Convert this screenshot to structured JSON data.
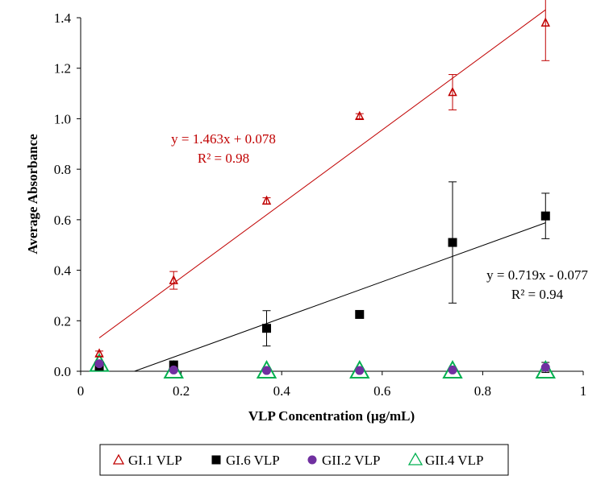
{
  "chart_data": {
    "type": "scatter",
    "xlabel": "VLP Concentration (µg/mL)",
    "ylabel": "Average Absorbance",
    "xlim": [
      0,
      1
    ],
    "ylim": [
      0,
      1.4
    ],
    "xticks": [
      0,
      0.2,
      0.4,
      0.6,
      0.8,
      1
    ],
    "xtick_labels": [
      "0",
      "0.2",
      "0.4",
      "0.6",
      "0.8",
      "1"
    ],
    "yticks": [
      0,
      0.2,
      0.4,
      0.6,
      0.8,
      1.0,
      1.2,
      1.4
    ],
    "ytick_labels": [
      "0.0",
      "0.2",
      "0.4",
      "0.6",
      "0.8",
      "1.0",
      "1.2",
      "1.4"
    ],
    "legend_position": "bottom",
    "series": [
      {
        "name": "GI.1 VLP",
        "color": "#c00000",
        "marker": "triangle-open-small",
        "x": [
          0.037,
          0.185,
          0.37,
          0.555,
          0.74,
          0.925
        ],
        "y": [
          0.07,
          0.36,
          0.675,
          1.01,
          1.105,
          1.38
        ],
        "err": [
          0.01,
          0.035,
          0.012,
          0.01,
          0.07,
          0.15
        ],
        "trendline": {
          "slope": 1.463,
          "intercept": 0.078,
          "x_range": [
            0.037,
            0.925
          ],
          "color": "#c00000"
        },
        "equation": "y = 1.463x + 0.078",
        "r2": "R² = 0.98"
      },
      {
        "name": "GI.6 VLP",
        "color": "#000000",
        "marker": "square",
        "x": [
          0.037,
          0.185,
          0.37,
          0.555,
          0.74,
          0.925
        ],
        "y": [
          0.02,
          0.025,
          0.17,
          0.225,
          0.51,
          0.615
        ],
        "err": [
          0.012,
          0.01,
          0.07,
          0.012,
          0.24,
          0.09
        ],
        "trendline": {
          "slope": 0.719,
          "intercept": -0.077,
          "x_range": [
            0.107,
            0.925
          ],
          "color": "#000000"
        },
        "equation": "y = 0.719x - 0.077",
        "r2": "R² = 0.94"
      },
      {
        "name": "GII.2 VLP",
        "color": "#7030a0",
        "marker": "circle",
        "x": [
          0.037,
          0.185,
          0.37,
          0.555,
          0.74,
          0.925
        ],
        "y": [
          0.03,
          0.005,
          0.003,
          0.003,
          0.005,
          0.015
        ],
        "err": [
          0.01,
          0.005,
          0.005,
          0.005,
          0.005,
          0.02
        ]
      },
      {
        "name": "GII.4 VLP",
        "color": "#00b050",
        "marker": "triangle-open-large",
        "x": [
          0.037,
          0.185,
          0.37,
          0.555,
          0.74,
          0.925
        ],
        "y": [
          0.03,
          0.003,
          0.003,
          0.003,
          0.003,
          0.003
        ],
        "err": [
          0,
          0,
          0,
          0,
          0,
          0
        ]
      }
    ]
  }
}
